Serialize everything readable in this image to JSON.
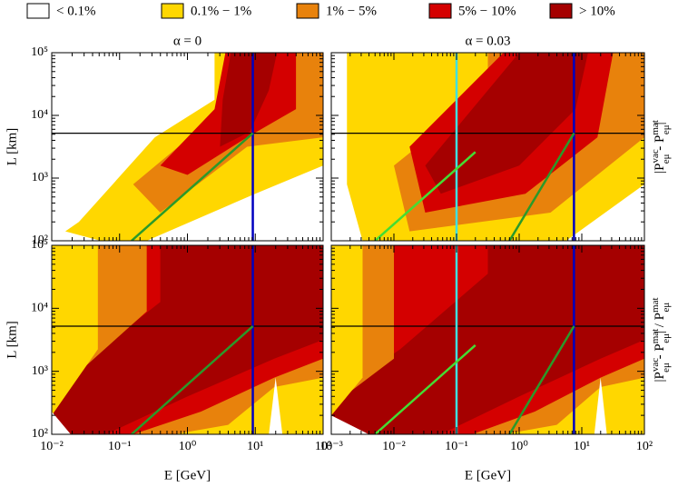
{
  "legend": [
    {
      "label": "< 0.1%",
      "color": "#ffffff"
    },
    {
      "label": "0.1% − 1%",
      "color": "#ffd700"
    },
    {
      "label": "1% − 5%",
      "color": "#e8820c"
    },
    {
      "label": "5% − 10%",
      "color": "#d40000"
    },
    {
      "label": "> 10%",
      "color": "#a50000"
    }
  ],
  "side_labels": [
    [
      "|",
      "P",
      "vac",
      "eμ",
      " - ",
      "P",
      "mat",
      "eμ",
      "|"
    ],
    [
      "|",
      "P",
      "vac",
      "eμ",
      " - ",
      "P",
      "mat",
      "eμ",
      "| / ",
      "P",
      "mat",
      "eμ"
    ]
  ],
  "chart_data": [
    {
      "type": "contour",
      "title": "α = 0",
      "ylabel": "L [km]",
      "log": true,
      "xlim": [
        0.01,
        100
      ],
      "ylim": [
        100,
        100000
      ],
      "xticks": [
        0.01,
        0.1,
        1,
        10,
        100
      ],
      "yticks": [
        {
          "value": 100,
          "label": "10²"
        },
        {
          "value": 1000,
          "label": "10³"
        },
        {
          "value": 10000,
          "label": "10⁴"
        },
        {
          "value": 100000,
          "label": "10⁵"
        }
      ],
      "hlines": [
        {
          "value": 5200,
          "color": "#000000"
        }
      ],
      "vlines": [
        {
          "value": 9.2,
          "color": "#0000c0"
        }
      ],
      "lines": [
        {
          "x": [
            0.15,
            9.2
          ],
          "y": [
            100,
            5200
          ],
          "color": "#2a9a2a"
        }
      ]
    },
    {
      "type": "contour",
      "title": "α = 0.03",
      "log": true,
      "xlim": [
        0.001,
        100
      ],
      "ylim": [
        100,
        100000
      ],
      "xticks": [
        0.001,
        0.01,
        0.1,
        1,
        10,
        100
      ],
      "yticks": [
        100,
        1000,
        10000,
        100000
      ],
      "hlines": [
        {
          "value": 5200,
          "color": "#000000"
        }
      ],
      "vlines": [
        {
          "value": 0.1,
          "color": "#40e0e0"
        },
        {
          "value": 7.5,
          "color": "#0000c0"
        }
      ],
      "lines": [
        {
          "x": [
            0.005,
            0.2
          ],
          "y": [
            100,
            2600
          ],
          "color": "#44dd33"
        },
        {
          "x": [
            0.7,
            7.5
          ],
          "y": [
            100,
            5200
          ],
          "color": "#2a9a2a"
        }
      ]
    },
    {
      "type": "contour",
      "xlabel": "E [GeV]",
      "ylabel": "L [km]",
      "log": true,
      "xlim": [
        0.01,
        100
      ],
      "ylim": [
        100,
        100000
      ],
      "xticks": [
        {
          "value": 0.01,
          "label": "10⁻²"
        },
        {
          "value": 0.1,
          "label": "10⁻¹"
        },
        {
          "value": 1,
          "label": "10⁰"
        },
        {
          "value": 10,
          "label": "10¹"
        },
        {
          "value": 100,
          "label": "10²"
        }
      ],
      "yticks": [
        {
          "value": 100,
          "label": "10²"
        },
        {
          "value": 1000,
          "label": "10³"
        },
        {
          "value": 10000,
          "label": "10⁴"
        },
        {
          "value": 100000,
          "label": "10⁵"
        }
      ],
      "hlines": [
        {
          "value": 5200,
          "color": "#000000"
        }
      ],
      "vlines": [
        {
          "value": 9.2,
          "color": "#0000c0"
        }
      ],
      "lines": [
        {
          "x": [
            0.15,
            9.2
          ],
          "y": [
            100,
            5200
          ],
          "color": "#2a9a2a"
        }
      ]
    },
    {
      "type": "contour",
      "xlabel": "E [GeV]",
      "log": true,
      "xlim": [
        0.001,
        100
      ],
      "ylim": [
        100,
        100000
      ],
      "xticks": [
        {
          "value": 0.001,
          "label": "10⁻³"
        },
        {
          "value": 0.01,
          "label": "10⁻²"
        },
        {
          "value": 0.1,
          "label": "10⁻¹"
        },
        {
          "value": 1,
          "label": "10⁰"
        },
        {
          "value": 10,
          "label": "10¹"
        },
        {
          "value": 100,
          "label": "10²"
        }
      ],
      "yticks": [
        100,
        1000,
        10000,
        100000
      ],
      "hlines": [
        {
          "value": 5200,
          "color": "#000000"
        }
      ],
      "vlines": [
        {
          "value": 0.1,
          "color": "#40e0e0"
        },
        {
          "value": 7.5,
          "color": "#0000c0"
        }
      ],
      "lines": [
        {
          "x": [
            0.005,
            0.2
          ],
          "y": [
            100,
            2600
          ],
          "color": "#44dd33"
        },
        {
          "x": [
            0.7,
            7.5
          ],
          "y": [
            100,
            5200
          ],
          "color": "#2a9a2a"
        }
      ]
    }
  ]
}
